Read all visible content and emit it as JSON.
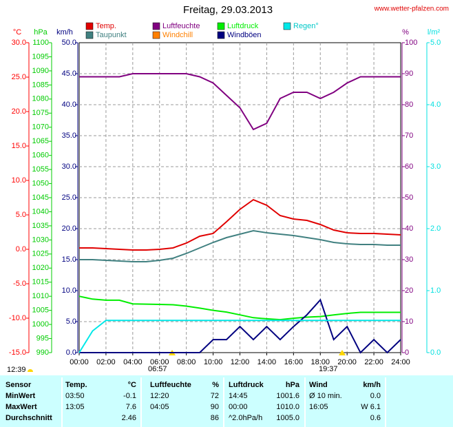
{
  "chart_data": {
    "type": "line",
    "title": "Freitag, 29.03.2013",
    "source": "www.wetter-pfalzen.com",
    "grid": true,
    "x": [
      0,
      1,
      2,
      3,
      4,
      5,
      6,
      7,
      8,
      9,
      10,
      11,
      12,
      13,
      14,
      15,
      16,
      17,
      18,
      19,
      20,
      21,
      22,
      23,
      24
    ],
    "xlim": [
      0,
      24
    ],
    "xticks": [
      {
        "value": 0,
        "label": "00:00"
      },
      {
        "value": 2,
        "label": "02:00"
      },
      {
        "value": 4,
        "label": "04:00"
      },
      {
        "value": 6,
        "label": "06:00"
      },
      {
        "value": 8,
        "label": "08:00"
      },
      {
        "value": 10,
        "label": "10:00"
      },
      {
        "value": 12,
        "label": "12:00"
      },
      {
        "value": 14,
        "label": "14:00"
      },
      {
        "value": 16,
        "label": "16:00"
      },
      {
        "value": 18,
        "label": "18:00"
      },
      {
        "value": 20,
        "label": "20:00"
      },
      {
        "value": 22,
        "label": "22:00"
      },
      {
        "value": 24,
        "label": "24:00"
      }
    ],
    "axes": {
      "temp": {
        "label": "°C",
        "color": "#ff0000",
        "lim": [
          -15,
          30
        ],
        "ticks": [
          {
            "value": 30,
            "label": "30.0"
          },
          {
            "value": 25,
            "label": "25.0"
          },
          {
            "value": 20,
            "label": "20.0"
          },
          {
            "value": 15,
            "label": "15.0"
          },
          {
            "value": 10,
            "label": "10.0"
          },
          {
            "value": 5,
            "label": "5.0"
          },
          {
            "value": 0,
            "label": "0.0"
          },
          {
            "value": -5,
            "label": "-5.0"
          },
          {
            "value": -10,
            "label": "-10.0"
          },
          {
            "value": -15,
            "label": "-15.0"
          }
        ]
      },
      "hpa": {
        "label": "hPa",
        "color": "#00cc00",
        "lim": [
          990,
          1100
        ],
        "ticks": [
          1100,
          1095,
          1090,
          1085,
          1080,
          1075,
          1070,
          1065,
          1060,
          1055,
          1050,
          1045,
          1040,
          1035,
          1030,
          1025,
          1020,
          1015,
          1010,
          1005,
          1000,
          995,
          990
        ]
      },
      "kmh": {
        "label": "km/h",
        "color": "#000080",
        "lim": [
          0,
          50
        ],
        "ticks": [
          {
            "value": 50,
            "label": "50.0"
          },
          {
            "value": 45,
            "label": "45.0"
          },
          {
            "value": 40,
            "label": "40.0"
          },
          {
            "value": 35,
            "label": "35.0"
          },
          {
            "value": 30,
            "label": "30.0"
          },
          {
            "value": 25,
            "label": "25.0"
          },
          {
            "value": 20,
            "label": "20.0"
          },
          {
            "value": 15,
            "label": "15.0"
          },
          {
            "value": 10,
            "label": "10.0"
          },
          {
            "value": 5,
            "label": "5.0"
          },
          {
            "value": 0,
            "label": "0.0"
          }
        ]
      },
      "pct": {
        "label": "%",
        "color": "#800080",
        "lim": [
          0,
          100
        ],
        "ticks": [
          100,
          90,
          80,
          70,
          60,
          50,
          40,
          30,
          20,
          10,
          0
        ]
      },
      "lm2": {
        "label": "l/m²",
        "color": "#00e0e0",
        "lim": [
          0,
          5
        ],
        "ticks": [
          {
            "value": 5,
            "label": "5.0"
          },
          {
            "value": 4,
            "label": "4.0"
          },
          {
            "value": 3,
            "label": "3.0"
          },
          {
            "value": 2,
            "label": "2.0"
          },
          {
            "value": 1,
            "label": "1.0"
          },
          {
            "value": 0,
            "label": "0.0"
          }
        ]
      }
    },
    "series": [
      {
        "name": "Temp.",
        "color": "#e00000",
        "axis": "temp",
        "values": [
          0.2,
          0.2,
          0.1,
          0.0,
          -0.1,
          -0.1,
          0.0,
          0.2,
          0.9,
          1.9,
          2.3,
          4.0,
          5.8,
          7.2,
          6.4,
          4.9,
          4.4,
          4.2,
          3.6,
          2.8,
          2.4,
          2.3,
          2.3,
          2.2,
          2.1
        ]
      },
      {
        "name": "Taupunkt",
        "color": "#408080",
        "axis": "temp",
        "values": [
          -1.5,
          -1.5,
          -1.6,
          -1.7,
          -1.8,
          -1.8,
          -1.6,
          -1.3,
          -0.6,
          0.2,
          1.0,
          1.7,
          2.2,
          2.7,
          2.4,
          2.2,
          2.0,
          1.7,
          1.4,
          1.0,
          0.8,
          0.7,
          0.7,
          0.6,
          0.6
        ]
      },
      {
        "name": "Luftfeuchte",
        "color": "#800080",
        "axis": "pct",
        "values": [
          89,
          89,
          89,
          89,
          90,
          90,
          90,
          90,
          90,
          89,
          87,
          83,
          79,
          72,
          74,
          82,
          84,
          84,
          82,
          84,
          87,
          89,
          89,
          89,
          89
        ]
      },
      {
        "name": "Windchill",
        "color": "#ff8000",
        "axis": "temp",
        "values": [
          null,
          null,
          null,
          null,
          null,
          null,
          null,
          null,
          null,
          null,
          null,
          null,
          null,
          null,
          null,
          null,
          null,
          null,
          null,
          null,
          null,
          null,
          null,
          null,
          null
        ]
      },
      {
        "name": "Luftdruck",
        "color": "#00ee00",
        "axis": "hpa",
        "values": [
          1010.0,
          1009.0,
          1008.6,
          1008.6,
          1007.3,
          1007.2,
          1007.1,
          1007.0,
          1006.5,
          1005.8,
          1005.0,
          1004.4,
          1003.4,
          1002.4,
          1002.0,
          1001.7,
          1002.2,
          1002.6,
          1002.8,
          1003.4,
          1003.9,
          1004.3,
          1004.3,
          1004.3,
          1004.3
        ]
      },
      {
        "name": "Windböen",
        "color": "#000080",
        "axis": "kmh",
        "values": [
          0,
          0,
          0,
          0,
          0,
          0,
          0,
          0,
          0,
          0,
          2.1,
          2.1,
          4.2,
          2.1,
          4.2,
          2.1,
          4.2,
          6.1,
          8.5,
          2.1,
          4.2,
          0,
          2.1,
          0,
          2.1
        ]
      },
      {
        "name": "Regen°",
        "color": "#00e8e8",
        "axis": "lm2",
        "values": [
          0.0,
          0.35,
          0.52,
          0.52,
          0.52,
          0.52,
          0.52,
          0.52,
          0.52,
          0.52,
          0.52,
          0.52,
          0.52,
          0.52,
          0.52,
          0.52,
          0.52,
          0.52,
          0.52,
          0.52,
          0.52,
          0.52,
          0.52,
          0.52,
          0.52
        ]
      }
    ],
    "annotations": {
      "moon": "12:39",
      "sunrise": "06:57",
      "sunset": "19:37"
    }
  },
  "table": {
    "header": [
      "Sensor",
      "Temp.",
      "°C",
      "Luftfeuchte",
      "%",
      "Luftdruck",
      "hPa",
      "Wind",
      "km/h"
    ],
    "rows": [
      [
        "MinWert",
        "03:50",
        "-0.1",
        "12:20",
        "72",
        "14:45",
        "1001.6",
        "Ø 10 min.",
        "0.0"
      ],
      [
        "MaxWert",
        "13:05",
        "7.6",
        "04:05",
        "90",
        "00:00",
        "1010.0",
        "16:05",
        "W 6.1"
      ],
      [
        "Durchschnitt",
        null,
        "2.46",
        null,
        "86",
        "^2.0hPa/h",
        "1005.0",
        null,
        "0.6"
      ]
    ]
  }
}
